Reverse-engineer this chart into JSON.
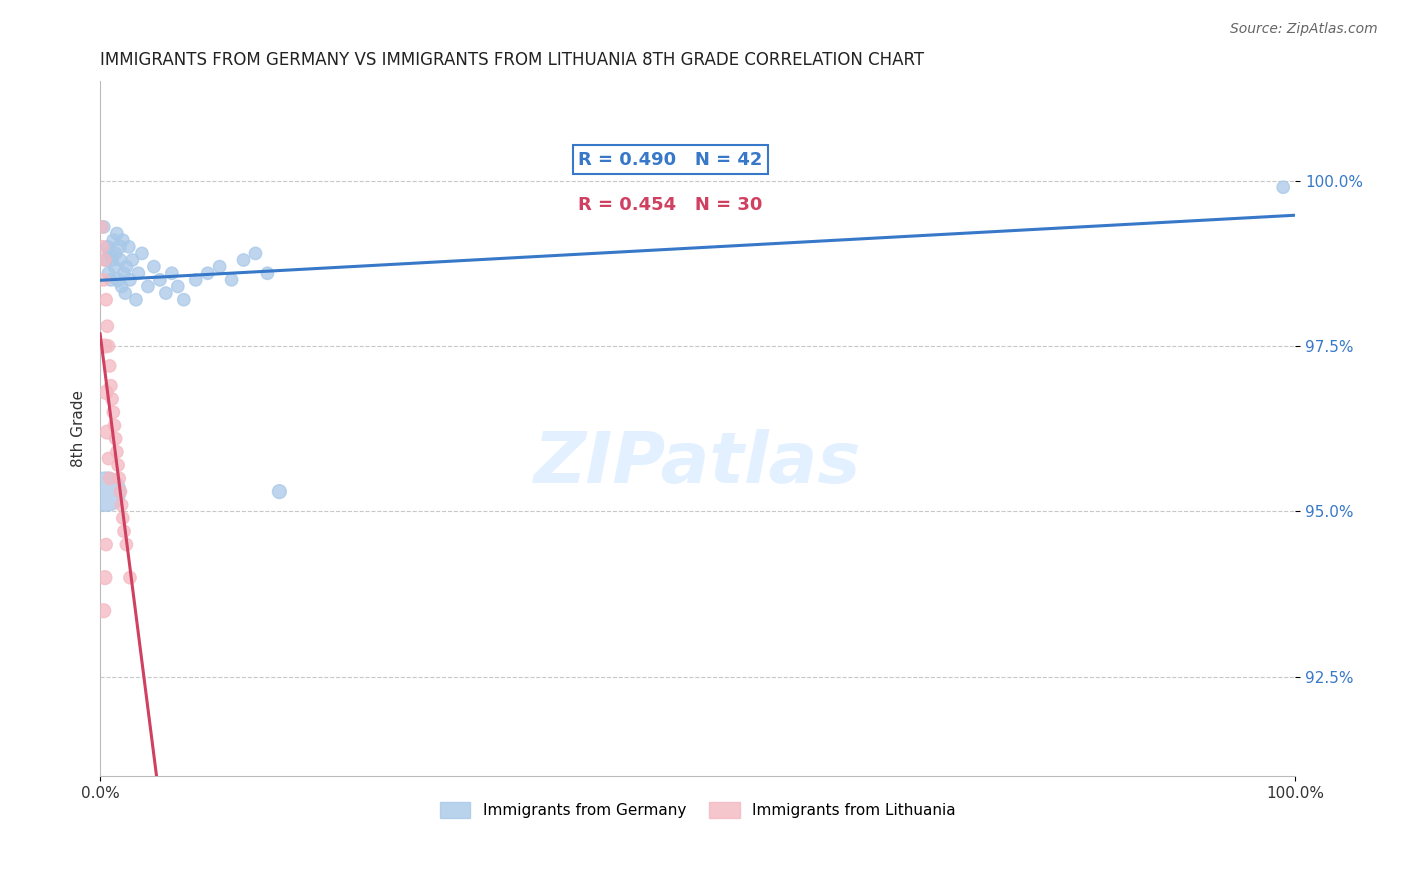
{
  "title": "IMMIGRANTS FROM GERMANY VS IMMIGRANTS FROM LITHUANIA 8TH GRADE CORRELATION CHART",
  "source": "Source: ZipAtlas.com",
  "ylabel": "8th Grade",
  "xlim": [
    0,
    100
  ],
  "ylim": [
    91.0,
    101.5
  ],
  "yticks": [
    92.5,
    95.0,
    97.5,
    100.0
  ],
  "xtick_labels": [
    "0.0%",
    "100.0%"
  ],
  "ytick_labels": [
    "92.5%",
    "95.0%",
    "97.5%",
    "100.0%"
  ],
  "r_germany": 0.49,
  "n_germany": 42,
  "r_lithuania": 0.454,
  "n_lithuania": 30,
  "germany_color": "#a8c8e8",
  "lithuania_color": "#f4b8c1",
  "germany_line_color": "#3878c8",
  "lithuania_line_color": "#d04060",
  "legend_germany": "Immigrants from Germany",
  "legend_lithuania": "Immigrants from Lithuania",
  "watermark": "ZIPatlas",
  "background_color": "#ffffff",
  "grid_color": "#c8c8c8"
}
